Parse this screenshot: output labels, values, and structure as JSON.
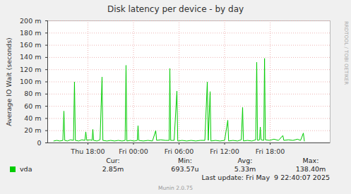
{
  "chart_data": {
    "type": "line",
    "title": "Disk latency per device - by day",
    "y_label": "Average IO Wait (seconds)",
    "side_text": "RRDTOOL / TOBI OETIKER",
    "last_update": "Last update: Fri May  9 22:40:07 2025",
    "footer": "Munin 2.0.75",
    "grid": true,
    "x": [
      13.5,
      13.9,
      14.3,
      14.7,
      14.84,
      14.95,
      15.3,
      15.7,
      16.1,
      16.23,
      16.35,
      16.8,
      17.2,
      17.6,
      17.72,
      17.85,
      18.3,
      18.55,
      18.65,
      18.75,
      19.2,
      19.6,
      19.86,
      19.97,
      20.5,
      21.0,
      21.5,
      22.0,
      22.5,
      22.9,
      23.02,
      23.13,
      23.6,
      24.1,
      24.5,
      24.6,
      24.7,
      25.3,
      25.9,
      26.5,
      26.93,
      27.05,
      27.6,
      28.2,
      28.7,
      28.79,
      28.9,
      29.35,
      29.72,
      29.83,
      30.4,
      31.0,
      31.6,
      32.2,
      32.8,
      33.4,
      33.72,
      33.85,
      34.09,
      34.2,
      34.8,
      35.4,
      36.0,
      36.42,
      36.53,
      37.1,
      37.7,
      38.2,
      38.37,
      38.48,
      39.0,
      39.6,
      40.1,
      40.23,
      40.34,
      40.6,
      40.7,
      40.8,
      41.15,
      41.26,
      41.37,
      41.9,
      42.5,
      43.1,
      43.67,
      43.8,
      44.4,
      45.0,
      45.6,
      46.0,
      46.37,
      46.5
    ],
    "series": [
      {
        "name": "vda",
        "color": "#00cc00",
        "values": [
          0.003,
          0.004,
          0.003,
          0.004,
          0.052,
          0.004,
          0.003,
          0.005,
          0.004,
          0.1,
          0.004,
          0.003,
          0.005,
          0.004,
          0.018,
          0.004,
          0.005,
          0.004,
          0.022,
          0.004,
          0.003,
          0.005,
          0.108,
          0.004,
          0.003,
          0.004,
          0.003,
          0.004,
          0.003,
          0.004,
          0.127,
          0.003,
          0.004,
          0.003,
          0.004,
          0.028,
          0.004,
          0.003,
          0.004,
          0.003,
          0.02,
          0.004,
          0.005,
          0.004,
          0.004,
          0.122,
          0.004,
          0.004,
          0.085,
          0.003,
          0.004,
          0.003,
          0.004,
          0.003,
          0.004,
          0.004,
          0.1,
          0.004,
          0.084,
          0.003,
          0.004,
          0.003,
          0.004,
          0.037,
          0.003,
          0.004,
          0.003,
          0.005,
          0.058,
          0.003,
          0.004,
          0.003,
          0.005,
          0.132,
          0.004,
          0.005,
          0.026,
          0.005,
          0.004,
          0.1384,
          0.005,
          0.004,
          0.006,
          0.004,
          0.012,
          0.004,
          0.005,
          0.004,
          0.006,
          0.004,
          0.016,
          0.00285
        ]
      }
    ],
    "xlim": [
      12.7,
      49.9
    ],
    "xticks": [
      {
        "value": 18,
        "label": "Thu 18:00"
      },
      {
        "value": 24,
        "label": "Fri 00:00"
      },
      {
        "value": 30,
        "label": "Fri 06:00"
      },
      {
        "value": 36,
        "label": "Fri 12:00"
      },
      {
        "value": 42,
        "label": "Fri 18:00"
      }
    ],
    "ylim": [
      0,
      0.2
    ],
    "yticks": [
      0,
      {
        "value": 0.02,
        "label": "20 m"
      },
      {
        "value": 0.04,
        "label": "40 m"
      },
      {
        "value": 0.06,
        "label": "60 m"
      },
      {
        "value": 0.08,
        "label": "80 m"
      },
      {
        "value": 0.1,
        "label": "100 m"
      },
      {
        "value": 0.12,
        "label": "120 m"
      },
      {
        "value": 0.14,
        "label": "140 m"
      },
      {
        "value": 0.16,
        "label": "160 m"
      },
      {
        "value": 0.18,
        "label": "180 m"
      },
      {
        "value": 0.2,
        "label": "200 m"
      }
    ],
    "stats": [
      {
        "name": "Cur:",
        "text": "2.85m"
      },
      {
        "name": "Min:",
        "text": "693.57u"
      },
      {
        "name": "Avg:",
        "text": "5.33m"
      },
      {
        "name": "Max:",
        "text": "138.40m"
      }
    ]
  }
}
